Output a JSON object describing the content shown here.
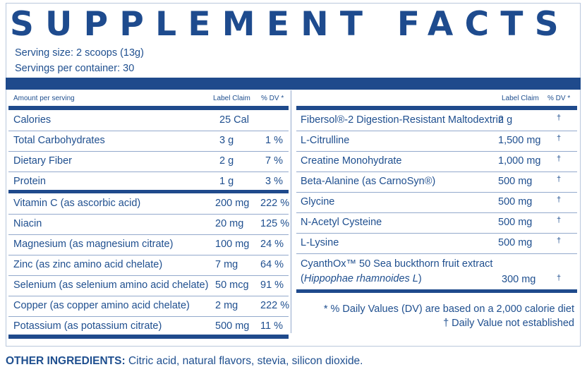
{
  "title": "SUPPLEMENT FACTS",
  "serving_size": "Serving size: 2 scoops (13g)",
  "servings_per_container": "Servings per container: 30",
  "left_header": {
    "amount": "Amount per serving",
    "claim": "Label Claim",
    "dv": "% DV *"
  },
  "right_header": {
    "claim": "Label Claim",
    "dv": "% DV *"
  },
  "left_rows_a": [
    {
      "name": "Calories",
      "claim": "25 Cal",
      "dv": ""
    },
    {
      "name": "Total Carbohydrates",
      "claim": "3 g",
      "dv": "1 %"
    },
    {
      "name": "Dietary Fiber",
      "claim": "2 g",
      "dv": "7 %"
    },
    {
      "name": "Protein",
      "claim": "1 g",
      "dv": "3 %"
    }
  ],
  "left_rows_b": [
    {
      "name": "Vitamin C (as ascorbic acid)",
      "claim": "200 mg",
      "dv": "222 %"
    },
    {
      "name": "Niacin",
      "claim": "20 mg",
      "dv": "125 %"
    },
    {
      "name": "Magnesium (as magnesium citrate)",
      "claim": "100 mg",
      "dv": "24 %"
    },
    {
      "name": "Zinc (as zinc amino acid chelate)",
      "claim": "7 mg",
      "dv": "64 %"
    },
    {
      "name": "Selenium (as selenium amino acid chelate)",
      "claim": "50 mcg",
      "dv": "91 %"
    },
    {
      "name": "Copper (as copper amino acid chelate)",
      "claim": "2 mg",
      "dv": "222 %"
    },
    {
      "name": "Potassium (as potassium citrate)",
      "claim": "500 mg",
      "dv": "11 %"
    }
  ],
  "right_rows": [
    {
      "name": "Fibersol®-2 Digestion-Resistant Maltodextrin",
      "claim": "2 g",
      "dv": "†"
    },
    {
      "name": "L-Citrulline",
      "claim": "1,500 mg",
      "dv": "†"
    },
    {
      "name": "Creatine Monohydrate",
      "claim": "1,000 mg",
      "dv": "†"
    },
    {
      "name": "Beta-Alanine (as CarnoSyn®)",
      "claim": "500 mg",
      "dv": "†"
    },
    {
      "name": "Glycine",
      "claim": "500 mg",
      "dv": "†"
    },
    {
      "name": "N-Acetyl Cysteine",
      "claim": "500 mg",
      "dv": "†"
    },
    {
      "name": "L-Lysine",
      "claim": "500 mg",
      "dv": "†"
    }
  ],
  "cyanthox": {
    "line1": "CyanthOx™ 50 Sea buckthorn fruit extract",
    "line2_open": "(",
    "line2_italic": "Hippophae rhamnoides L",
    "line2_close": ")",
    "claim": "300 mg",
    "dv": "†"
  },
  "footnote_dv": "* % Daily Values (DV) are based on a 2,000 calorie diet",
  "footnote_dagger": "† Daily Value not established",
  "other_label": "OTHER INGREDIENTS:",
  "other_text": " Citric acid, natural flavors, stevia, silicon dioxide.",
  "colors": {
    "primary": "#1f4a8c",
    "divider": "#93a9cc"
  }
}
